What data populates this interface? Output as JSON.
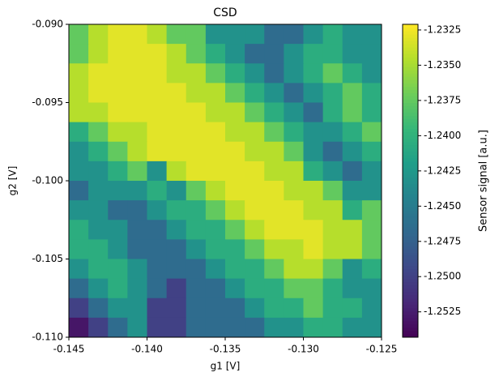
{
  "chart_data": {
    "type": "heatmap",
    "title": "CSD",
    "xlabel": "g1 [V]",
    "ylabel": "g2 [V]",
    "colorbar_label": "Sensor signal [a.u.]",
    "colormap": "viridis",
    "x": [
      -0.144375,
      -0.143125,
      -0.141875,
      -0.140625,
      -0.139375,
      -0.138125,
      -0.136875,
      -0.135625,
      -0.134375,
      -0.133125,
      -0.131875,
      -0.130625,
      -0.129375,
      -0.128125,
      -0.126875,
      -0.125625
    ],
    "y": [
      -0.090625,
      -0.091875,
      -0.093125,
      -0.094375,
      -0.095625,
      -0.096875,
      -0.098125,
      -0.099375,
      -0.100625,
      -0.101875,
      -0.103125,
      -0.104375,
      -0.105625,
      -0.106875,
      -0.108125,
      -0.109375
    ],
    "z": [
      [
        -1.2375,
        -1.2345,
        -1.233,
        -1.233,
        -1.2345,
        -1.2375,
        -1.2375,
        -1.243,
        -1.243,
        -1.243,
        -1.2465,
        -1.2465,
        -1.243,
        -1.2405,
        -1.243,
        -1.243
      ],
      [
        -1.2375,
        -1.2345,
        -1.233,
        -1.233,
        -1.233,
        -1.2345,
        -1.2375,
        -1.2405,
        -1.243,
        -1.2465,
        -1.2465,
        -1.243,
        -1.2405,
        -1.2405,
        -1.243,
        -1.243
      ],
      [
        -1.2345,
        -1.233,
        -1.233,
        -1.233,
        -1.233,
        -1.2345,
        -1.2345,
        -1.2375,
        -1.2405,
        -1.243,
        -1.2465,
        -1.243,
        -1.2405,
        -1.2375,
        -1.2405,
        -1.243
      ],
      [
        -1.2345,
        -1.233,
        -1.233,
        -1.233,
        -1.233,
        -1.233,
        -1.2345,
        -1.2345,
        -1.2375,
        -1.2405,
        -1.243,
        -1.2465,
        -1.243,
        -1.2405,
        -1.2375,
        -1.2405
      ],
      [
        -1.2345,
        -1.2345,
        -1.233,
        -1.233,
        -1.233,
        -1.233,
        -1.233,
        -1.2345,
        -1.2345,
        -1.2375,
        -1.2405,
        -1.243,
        -1.2465,
        -1.2405,
        -1.2375,
        -1.2405
      ],
      [
        -1.2405,
        -1.2375,
        -1.2345,
        -1.2345,
        -1.233,
        -1.233,
        -1.233,
        -1.233,
        -1.2345,
        -1.2345,
        -1.2375,
        -1.2405,
        -1.243,
        -1.243,
        -1.2405,
        -1.2375
      ],
      [
        -1.243,
        -1.2405,
        -1.2375,
        -1.2345,
        -1.233,
        -1.233,
        -1.233,
        -1.233,
        -1.233,
        -1.2345,
        -1.2345,
        -1.2375,
        -1.243,
        -1.2465,
        -1.243,
        -1.2405
      ],
      [
        -1.243,
        -1.243,
        -1.2405,
        -1.2375,
        -1.243,
        -1.2345,
        -1.233,
        -1.233,
        -1.233,
        -1.233,
        -1.2345,
        -1.2345,
        -1.2405,
        -1.243,
        -1.2465,
        -1.243
      ],
      [
        -1.2465,
        -1.243,
        -1.243,
        -1.243,
        -1.2405,
        -1.243,
        -1.2375,
        -1.2345,
        -1.233,
        -1.233,
        -1.233,
        -1.2345,
        -1.2345,
        -1.2375,
        -1.243,
        -1.243
      ],
      [
        -1.243,
        -1.243,
        -1.2465,
        -1.2465,
        -1.243,
        -1.2405,
        -1.2405,
        -1.2375,
        -1.2345,
        -1.233,
        -1.233,
        -1.233,
        -1.2345,
        -1.2345,
        -1.2405,
        -1.2375
      ],
      [
        -1.2405,
        -1.243,
        -1.243,
        -1.2465,
        -1.2465,
        -1.243,
        -1.2405,
        -1.2405,
        -1.2375,
        -1.2345,
        -1.233,
        -1.233,
        -1.233,
        -1.2345,
        -1.2345,
        -1.2375
      ],
      [
        -1.2405,
        -1.2405,
        -1.243,
        -1.2465,
        -1.2465,
        -1.2465,
        -1.243,
        -1.2405,
        -1.2405,
        -1.2375,
        -1.2345,
        -1.2345,
        -1.233,
        -1.2345,
        -1.2345,
        -1.2375
      ],
      [
        -1.243,
        -1.2405,
        -1.2405,
        -1.243,
        -1.2465,
        -1.2465,
        -1.2465,
        -1.243,
        -1.2405,
        -1.2405,
        -1.2375,
        -1.2345,
        -1.2345,
        -1.2375,
        -1.243,
        -1.2405
      ],
      [
        -1.2465,
        -1.243,
        -1.2405,
        -1.243,
        -1.2465,
        -1.25,
        -1.2465,
        -1.2465,
        -1.243,
        -1.2405,
        -1.2405,
        -1.2375,
        -1.2375,
        -1.2405,
        -1.243,
        -1.243
      ],
      [
        -1.25,
        -1.2465,
        -1.243,
        -1.243,
        -1.25,
        -1.25,
        -1.2465,
        -1.2465,
        -1.2465,
        -1.243,
        -1.2405,
        -1.2405,
        -1.2375,
        -1.2405,
        -1.2405,
        -1.243
      ],
      [
        -1.253,
        -1.25,
        -1.2465,
        -1.243,
        -1.25,
        -1.25,
        -1.2465,
        -1.2465,
        -1.2465,
        -1.2465,
        -1.243,
        -1.243,
        -1.2405,
        -1.2405,
        -1.243,
        -1.243
      ]
    ],
    "xlim": [
      -0.145,
      -0.125
    ],
    "xticks": [
      -0.145,
      {
        "value": -0.14,
        "label": "-0.140"
      },
      -0.135,
      {
        "value": -0.13,
        "label": "-0.130"
      },
      -0.125
    ],
    "ylim": [
      -0.11,
      -0.09
    ],
    "yticks": [
      {
        "value": -0.09,
        "label": "-0.090"
      },
      -0.095,
      {
        "value": -0.1,
        "label": "-0.100"
      },
      -0.105,
      {
        "value": -0.11,
        "label": "-0.110"
      }
    ],
    "zlim": [
      -1.2543,
      -1.2321
    ],
    "zticks": [
      -1.2325,
      {
        "value": -1.235,
        "label": "-1.2350"
      },
      -1.2375,
      {
        "value": -1.24,
        "label": "-1.2400"
      },
      -1.2425,
      {
        "value": -1.245,
        "label": "-1.2450"
      },
      -1.2475,
      {
        "value": -1.25,
        "label": "-1.2500"
      },
      -1.2525
    ]
  }
}
